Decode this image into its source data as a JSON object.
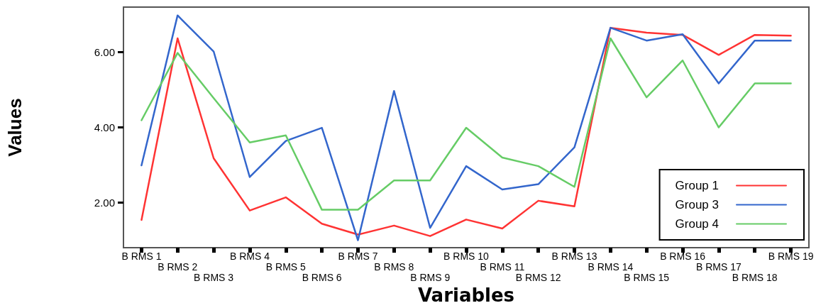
{
  "chart_data": {
    "type": "line",
    "xlabel": "Variables",
    "ylabel": "Values",
    "categories": [
      "B RMS 1",
      "B RMS 2",
      "B RMS 3",
      "B RMS 4",
      "B RMS 5",
      "B RMS 6",
      "B RMS 7",
      "B RMS 8",
      "B RMS 9",
      "B RMS 10",
      "B RMS 11",
      "B RMS 12",
      "B RMS 13",
      "B RMS 14",
      "B RMS 15",
      "B RMS 16",
      "B RMS 17",
      "B RMS 18",
      "B RMS 19"
    ],
    "series": [
      {
        "name": "Group 1",
        "color": "#ff3333",
        "values": [
          1.54,
          6.37,
          3.18,
          1.79,
          2.14,
          1.44,
          1.15,
          1.39,
          1.11,
          1.55,
          1.31,
          2.05,
          1.9,
          6.65,
          6.52,
          6.46,
          5.93,
          6.46,
          6.44
        ]
      },
      {
        "name": "Group 3",
        "color": "#3366cc",
        "values": [
          2.99,
          6.98,
          6.02,
          2.68,
          3.64,
          3.99,
          1.0,
          4.97,
          1.33,
          2.97,
          2.35,
          2.49,
          3.47,
          6.65,
          6.31,
          6.48,
          5.17,
          6.31,
          6.31
        ]
      },
      {
        "name": "Group 4",
        "color": "#66cc66",
        "values": [
          4.19,
          5.98,
          4.78,
          3.6,
          3.79,
          1.81,
          1.81,
          2.59,
          2.59,
          3.99,
          3.2,
          2.97,
          2.42,
          6.37,
          4.8,
          5.78,
          4.0,
          5.17,
          5.17
        ]
      }
    ],
    "ylim": [
      0.8,
      7.2
    ],
    "yticks": [
      {
        "value": 2,
        "label": "2.00"
      },
      {
        "value": 4,
        "label": "4.00"
      },
      {
        "value": 6,
        "label": "6.00"
      }
    ],
    "grid": false,
    "legend": "bottom right",
    "marker": "none",
    "line_style": "solid"
  }
}
